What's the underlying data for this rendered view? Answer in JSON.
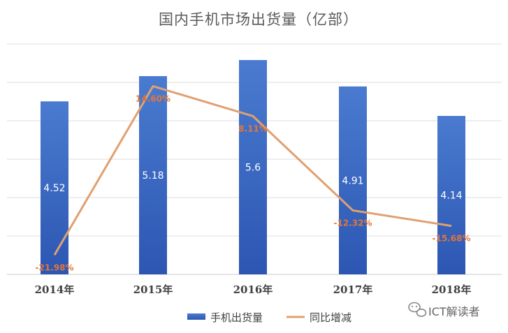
{
  "chart_data": {
    "type": "bar",
    "title": "国内手机市场出货量（亿部）",
    "categories": [
      "2014年",
      "2015年",
      "2016年",
      "2017年",
      "2018年"
    ],
    "series": [
      {
        "name": "手机出货量",
        "type": "bar",
        "values": [
          4.52,
          5.18,
          5.6,
          4.91,
          4.14
        ],
        "labels": [
          "4.52",
          "5.18",
          "5.6",
          "4.91",
          "4.14"
        ],
        "color": "#4472c4"
      },
      {
        "name": "同比增减",
        "type": "line",
        "values": [
          -21.98,
          14.6,
          8.11,
          -12.32,
          -15.68
        ],
        "labels": [
          "-21.98%",
          "14.60%",
          "8.11%",
          "-12.32%",
          "-15.68%"
        ],
        "color": "#e0a070"
      }
    ],
    "bar_axis": [
      0,
      5.6
    ],
    "line_axis": [
      -23,
      18
    ],
    "grid": true,
    "legend": "bottom-center"
  },
  "watermark": {
    "text": "ICT解读者",
    "icon": "wechat-icon"
  }
}
